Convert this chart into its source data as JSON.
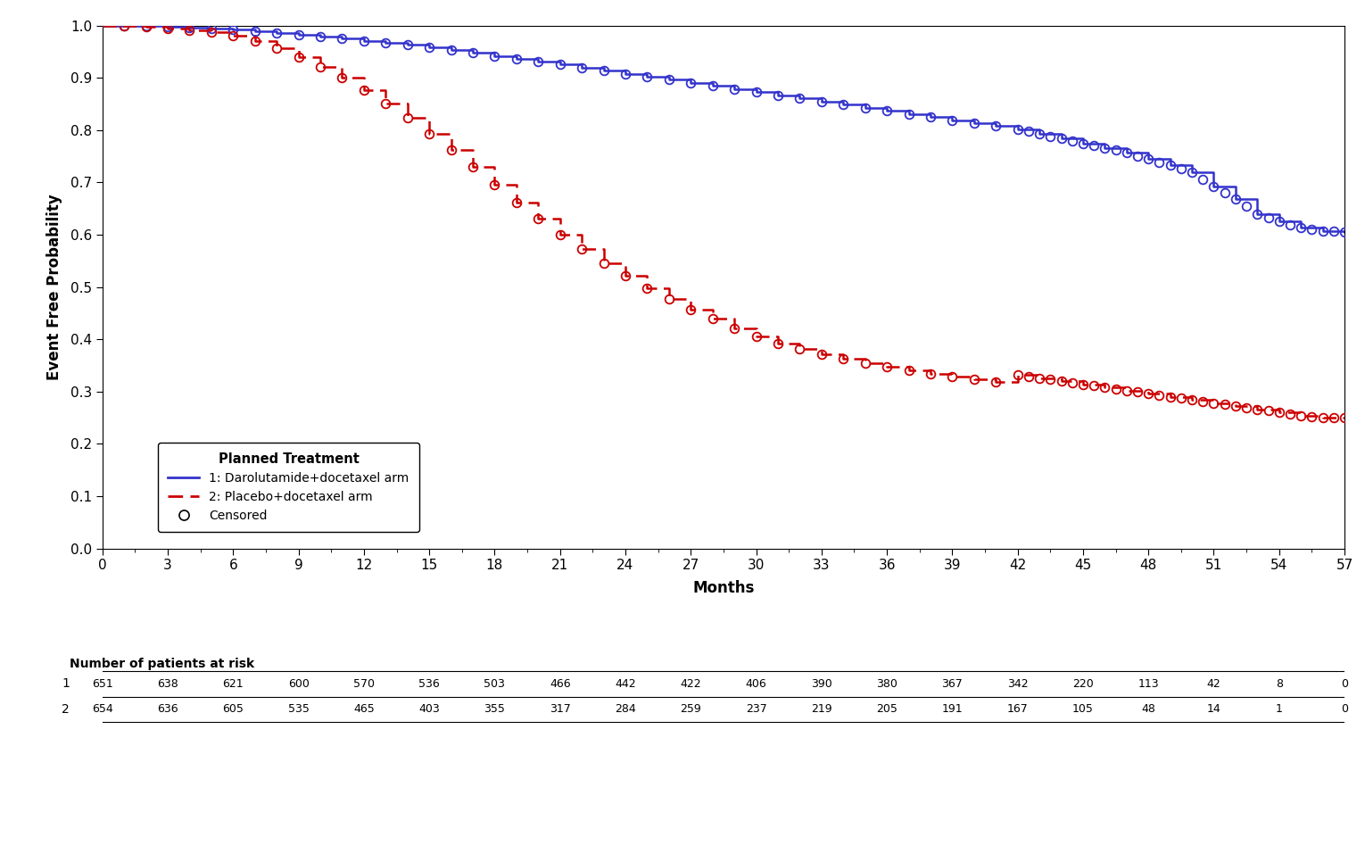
{
  "xlabel": "Months",
  "ylabel": "Event Free Probability",
  "xlim": [
    0,
    57
  ],
  "ylim": [
    0.0,
    1.0
  ],
  "xticks": [
    0,
    3,
    6,
    9,
    12,
    15,
    18,
    21,
    24,
    27,
    30,
    33,
    36,
    39,
    42,
    45,
    48,
    51,
    54,
    57
  ],
  "yticks": [
    0.0,
    0.1,
    0.2,
    0.3,
    0.4,
    0.5,
    0.6,
    0.7,
    0.8,
    0.9,
    1.0
  ],
  "arm1_color": "#3333cc",
  "arm2_color": "#cc0000",
  "legend_title": "Planned Treatment",
  "legend_labels": [
    "1: Darolutamide+docetaxel arm",
    "2: Placebo+docetaxel arm",
    "Censored"
  ],
  "at_risk_label": "Number of patients at risk",
  "at_risk_months": [
    0,
    3,
    6,
    9,
    12,
    15,
    18,
    21,
    24,
    27,
    30,
    33,
    36,
    39,
    42,
    45,
    48,
    51,
    54,
    57
  ],
  "at_risk_arm1": [
    651,
    638,
    621,
    600,
    570,
    536,
    503,
    466,
    442,
    422,
    406,
    390,
    380,
    367,
    342,
    220,
    113,
    42,
    8,
    0
  ],
  "at_risk_arm2": [
    654,
    636,
    605,
    535,
    465,
    403,
    355,
    317,
    284,
    259,
    237,
    219,
    205,
    191,
    167,
    105,
    48,
    14,
    1,
    0
  ],
  "arm1_key_pts": [
    [
      0,
      1.0
    ],
    [
      1,
      1.0
    ],
    [
      2,
      0.999
    ],
    [
      3,
      0.997
    ],
    [
      4,
      0.996
    ],
    [
      5,
      0.995
    ],
    [
      6,
      0.992
    ],
    [
      7,
      0.989
    ],
    [
      8,
      0.986
    ],
    [
      9,
      0.982
    ],
    [
      10,
      0.979
    ],
    [
      11,
      0.975
    ],
    [
      12,
      0.971
    ],
    [
      13,
      0.967
    ],
    [
      14,
      0.963
    ],
    [
      15,
      0.958
    ],
    [
      16,
      0.953
    ],
    [
      17,
      0.948
    ],
    [
      18,
      0.942
    ],
    [
      19,
      0.937
    ],
    [
      20,
      0.931
    ],
    [
      21,
      0.926
    ],
    [
      22,
      0.92
    ],
    [
      23,
      0.914
    ],
    [
      24,
      0.908
    ],
    [
      25,
      0.903
    ],
    [
      26,
      0.897
    ],
    [
      27,
      0.891
    ],
    [
      28,
      0.885
    ],
    [
      29,
      0.879
    ],
    [
      30,
      0.873
    ],
    [
      31,
      0.867
    ],
    [
      32,
      0.861
    ],
    [
      33,
      0.855
    ],
    [
      34,
      0.849
    ],
    [
      35,
      0.843
    ],
    [
      36,
      0.837
    ],
    [
      37,
      0.831
    ],
    [
      38,
      0.825
    ],
    [
      39,
      0.819
    ],
    [
      40,
      0.813
    ],
    [
      41,
      0.808
    ],
    [
      42,
      0.802
    ],
    [
      43,
      0.793
    ],
    [
      44,
      0.784
    ],
    [
      45,
      0.775
    ],
    [
      46,
      0.766
    ],
    [
      47,
      0.757
    ],
    [
      48,
      0.745
    ],
    [
      49,
      0.733
    ],
    [
      50,
      0.72
    ],
    [
      51,
      0.693
    ],
    [
      52,
      0.668
    ],
    [
      53,
      0.64
    ],
    [
      54,
      0.625
    ],
    [
      55,
      0.613
    ],
    [
      56,
      0.607
    ],
    [
      57,
      0.606
    ]
  ],
  "arm2_key_pts": [
    [
      0,
      1.0
    ],
    [
      1,
      0.999
    ],
    [
      2,
      0.997
    ],
    [
      3,
      0.994
    ],
    [
      4,
      0.991
    ],
    [
      5,
      0.987
    ],
    [
      6,
      0.98
    ],
    [
      7,
      0.97
    ],
    [
      8,
      0.957
    ],
    [
      9,
      0.94
    ],
    [
      10,
      0.921
    ],
    [
      11,
      0.9
    ],
    [
      12,
      0.877
    ],
    [
      13,
      0.851
    ],
    [
      14,
      0.823
    ],
    [
      15,
      0.793
    ],
    [
      16,
      0.762
    ],
    [
      17,
      0.729
    ],
    [
      18,
      0.695
    ],
    [
      19,
      0.662
    ],
    [
      20,
      0.63
    ],
    [
      21,
      0.6
    ],
    [
      22,
      0.572
    ],
    [
      23,
      0.546
    ],
    [
      24,
      0.521
    ],
    [
      25,
      0.498
    ],
    [
      26,
      0.477
    ],
    [
      27,
      0.457
    ],
    [
      28,
      0.439
    ],
    [
      29,
      0.421
    ],
    [
      30,
      0.405
    ],
    [
      31,
      0.392
    ],
    [
      32,
      0.381
    ],
    [
      33,
      0.371
    ],
    [
      34,
      0.362
    ],
    [
      35,
      0.354
    ],
    [
      36,
      0.347
    ],
    [
      37,
      0.34
    ],
    [
      38,
      0.334
    ],
    [
      39,
      0.328
    ],
    [
      40,
      0.323
    ],
    [
      41,
      0.318
    ],
    [
      42,
      0.332
    ],
    [
      43,
      0.326
    ],
    [
      44,
      0.32
    ],
    [
      45,
      0.314
    ],
    [
      46,
      0.308
    ],
    [
      47,
      0.302
    ],
    [
      48,
      0.296
    ],
    [
      49,
      0.29
    ],
    [
      50,
      0.284
    ],
    [
      51,
      0.278
    ],
    [
      52,
      0.272
    ],
    [
      53,
      0.266
    ],
    [
      54,
      0.26
    ],
    [
      55,
      0.254
    ],
    [
      56,
      0.25
    ],
    [
      57,
      0.25
    ]
  ]
}
